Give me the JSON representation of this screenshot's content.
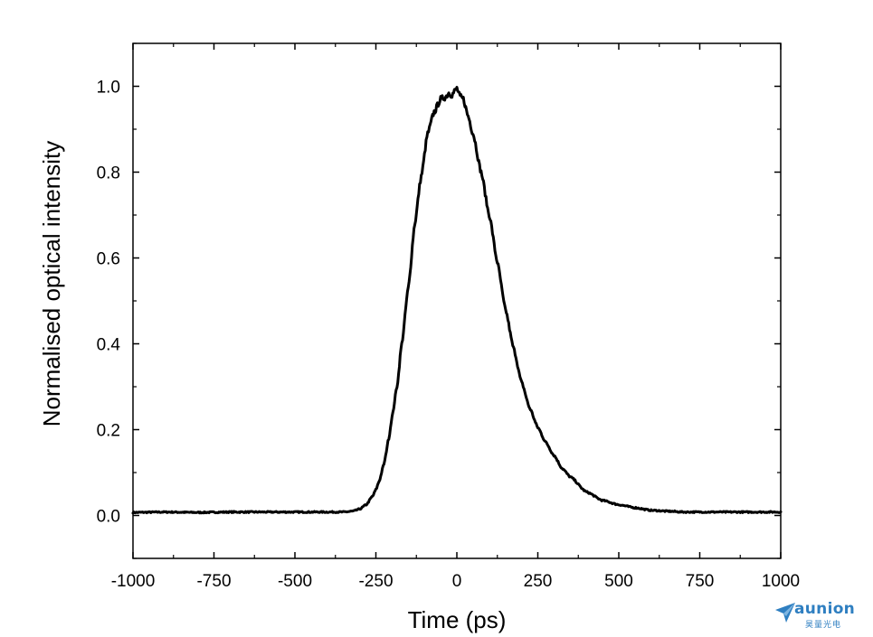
{
  "chart_data": {
    "type": "line",
    "title": "",
    "xlabel": "Time (ps)",
    "ylabel": "Normalised optical intensity",
    "xlim": [
      -1000,
      1000
    ],
    "ylim": [
      -0.1,
      1.1
    ],
    "xticks": [
      -1000,
      -750,
      -500,
      -250,
      0,
      250,
      500,
      750,
      1000
    ],
    "xtick_labels": [
      "-1000",
      "-750",
      "-500",
      "-250",
      "0",
      "250",
      "500",
      "750",
      "1000"
    ],
    "yticks": [
      0.0,
      0.2,
      0.4,
      0.6,
      0.8,
      1.0
    ],
    "ytick_labels": [
      "0.0",
      "0.2",
      "0.4",
      "0.6",
      "0.8",
      "1.0"
    ],
    "grid": false,
    "legend": "none",
    "line_color": "#000000",
    "series": [
      {
        "x": [
          -1000,
          -900,
          -800,
          -700,
          -600,
          -500,
          -400,
          -350,
          -320,
          -300,
          -280,
          -260,
          -250,
          -240,
          -225,
          -210,
          -200,
          -185,
          -170,
          -150,
          -130,
          -110,
          -90,
          -70,
          -50,
          -35,
          -25,
          -15,
          -5,
          0,
          10,
          20,
          35,
          50,
          75,
          100,
          125,
          150,
          175,
          200,
          225,
          250,
          275,
          300,
          325,
          350,
          400,
          450,
          500,
          550,
          600,
          650,
          700,
          750,
          800,
          900,
          1000
        ],
        "y": [
          0.007,
          0.008,
          0.007,
          0.008,
          0.008,
          0.008,
          0.008,
          0.008,
          0.01,
          0.015,
          0.025,
          0.045,
          0.06,
          0.08,
          0.12,
          0.18,
          0.23,
          0.3,
          0.4,
          0.53,
          0.68,
          0.79,
          0.89,
          0.94,
          0.97,
          0.975,
          0.985,
          0.98,
          0.99,
          0.995,
          0.975,
          0.97,
          0.93,
          0.89,
          0.8,
          0.7,
          0.59,
          0.48,
          0.39,
          0.31,
          0.25,
          0.205,
          0.17,
          0.14,
          0.11,
          0.09,
          0.055,
          0.035,
          0.025,
          0.018,
          0.012,
          0.01,
          0.008,
          0.008,
          0.008,
          0.008,
          0.008
        ]
      }
    ]
  },
  "logo": {
    "brand": "aunion",
    "subtitle": "昊量光电"
  }
}
